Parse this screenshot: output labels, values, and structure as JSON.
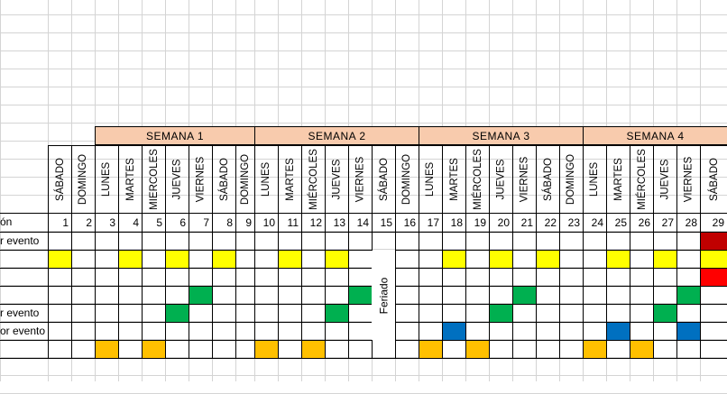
{
  "weeks": [
    "SEMANA 1",
    "SEMANA 2",
    "SEMANA 3",
    "SEMANA 4"
  ],
  "day_names": [
    "SÁBADO",
    "DOMINGO",
    "LUNES",
    "MARTES",
    "MIERCOLES",
    "JUEVES",
    "VIERNES",
    "SÁBADO",
    "DOMINGO",
    "LUNES",
    "MARTES",
    "MIÉRCOLES",
    "JUEVES",
    "VIERNES",
    "SÁBADO",
    "DOMINGO",
    "LUNES",
    "MARTES",
    "MIÉRCOLES",
    "JUEVES",
    "VIERNES",
    "SÁBADO",
    "DOMINGO",
    "LUNES",
    "MARTES",
    "MIÉRCOLES",
    "JUEVES",
    "VIERNES",
    "SÁBADO"
  ],
  "day_numbers": [
    "1",
    "2",
    "3",
    "4",
    "5",
    "6",
    "7",
    "8",
    "9",
    "10",
    "11",
    "12",
    "13",
    "14",
    "15",
    "16",
    "17",
    "18",
    "19",
    "20",
    "21",
    "22",
    "23",
    "24",
    "25",
    "26",
    "27",
    "28",
    "29"
  ],
  "row_labels": [
    "ón",
    "r evento",
    "",
    "",
    "",
    "r evento",
    "or evento"
  ],
  "feriado_label": "Feriado",
  "colors": {
    "yellow": "#ffff00",
    "green": "#00b050",
    "blue": "#0070c0",
    "orange": "#ffc000",
    "red": "#ff0000",
    "dark_red": "#c00000",
    "week_header": "#f8cbad"
  },
  "schedule": [
    {
      "row": 0,
      "day": 29,
      "color": "dark_red"
    },
    {
      "row": 1,
      "day": 1,
      "color": "yellow"
    },
    {
      "row": 1,
      "day": 4,
      "color": "yellow"
    },
    {
      "row": 1,
      "day": 6,
      "color": "yellow"
    },
    {
      "row": 1,
      "day": 8,
      "color": "yellow"
    },
    {
      "row": 1,
      "day": 11,
      "color": "yellow"
    },
    {
      "row": 1,
      "day": 13,
      "color": "yellow"
    },
    {
      "row": 1,
      "day": 18,
      "color": "yellow"
    },
    {
      "row": 1,
      "day": 20,
      "color": "yellow"
    },
    {
      "row": 1,
      "day": 22,
      "color": "yellow"
    },
    {
      "row": 1,
      "day": 25,
      "color": "yellow"
    },
    {
      "row": 1,
      "day": 27,
      "color": "yellow"
    },
    {
      "row": 1,
      "day": 29,
      "color": "yellow"
    },
    {
      "row": 2,
      "day": 29,
      "color": "red"
    },
    {
      "row": 3,
      "day": 7,
      "color": "green"
    },
    {
      "row": 3,
      "day": 14,
      "color": "green"
    },
    {
      "row": 3,
      "day": 21,
      "color": "green"
    },
    {
      "row": 3,
      "day": 28,
      "color": "green"
    },
    {
      "row": 4,
      "day": 6,
      "color": "green"
    },
    {
      "row": 4,
      "day": 13,
      "color": "green"
    },
    {
      "row": 4,
      "day": 20,
      "color": "green"
    },
    {
      "row": 4,
      "day": 27,
      "color": "green"
    },
    {
      "row": 5,
      "day": 18,
      "color": "blue"
    },
    {
      "row": 5,
      "day": 25,
      "color": "blue"
    },
    {
      "row": 5,
      "day": 28,
      "color": "blue"
    },
    {
      "row": 6,
      "day": 3,
      "color": "orange"
    },
    {
      "row": 6,
      "day": 5,
      "color": "orange"
    },
    {
      "row": 6,
      "day": 10,
      "color": "orange"
    },
    {
      "row": 6,
      "day": 12,
      "color": "orange"
    },
    {
      "row": 6,
      "day": 17,
      "color": "orange"
    },
    {
      "row": 6,
      "day": 19,
      "color": "orange"
    },
    {
      "row": 6,
      "day": 24,
      "color": "orange"
    },
    {
      "row": 6,
      "day": 26,
      "color": "orange"
    }
  ]
}
